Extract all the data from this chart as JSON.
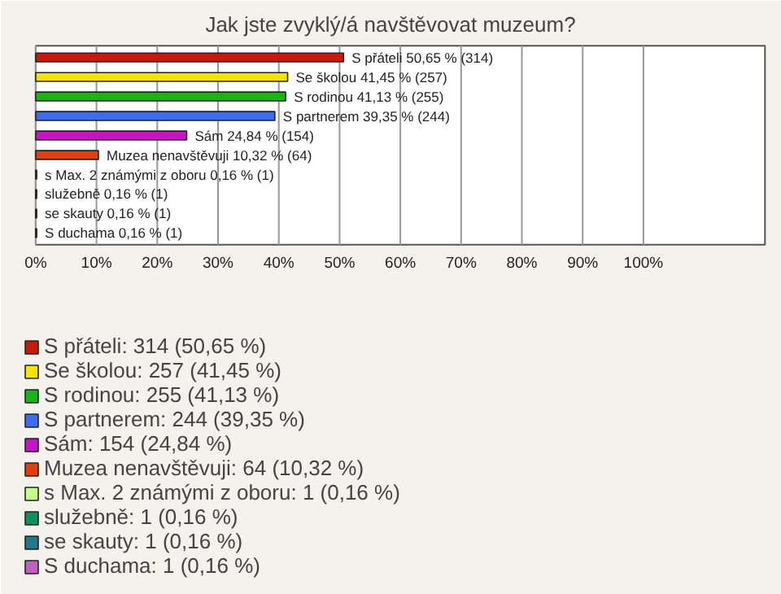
{
  "chart_data": {
    "type": "bar",
    "orientation": "horizontal",
    "title": "Jak jste zvyklý/á navštěvovat muzeum?",
    "categories": [
      null,
      null,
      null,
      null,
      null,
      null,
      null,
      null,
      null,
      null
    ],
    "series": [
      {
        "name": "S přáteli: 314 (50,65 %)",
        "color": "#c81a0a",
        "values": [
          50.65,
          null,
          null,
          null,
          null,
          null,
          null,
          null,
          null,
          null
        ],
        "value_labels": [
          "S přáteli 50,65 % (314)",
          null,
          null,
          null,
          null,
          null,
          null,
          null,
          null,
          null
        ]
      },
      {
        "name": "Se školou: 257 (41,45 %)",
        "color": "#f5e400",
        "values": [
          null,
          41.45,
          null,
          null,
          null,
          null,
          null,
          null,
          null,
          null
        ],
        "value_labels": [
          null,
          "Se školou 41,45 % (257)",
          null,
          null,
          null,
          null,
          null,
          null,
          null,
          null
        ]
      },
      {
        "name": "S rodinou: 255 (41,13 %)",
        "color": "#14b814",
        "values": [
          null,
          null,
          41.13,
          null,
          null,
          null,
          null,
          null,
          null,
          null
        ],
        "value_labels": [
          null,
          null,
          "S rodinou 41,13 % (255)",
          null,
          null,
          null,
          null,
          null,
          null,
          null
        ]
      },
      {
        "name": "S partnerem: 244 (39,35 %)",
        "color": "#3c6cf0",
        "values": [
          null,
          null,
          null,
          39.35,
          null,
          null,
          null,
          null,
          null,
          null
        ],
        "value_labels": [
          null,
          null,
          null,
          "S partnerem 39,35 % (244)",
          null,
          null,
          null,
          null,
          null,
          null
        ]
      },
      {
        "name": "Sám: 154 (24,84 %)",
        "color": "#c414c8",
        "values": [
          null,
          null,
          null,
          null,
          24.84,
          null,
          null,
          null,
          null,
          null
        ],
        "value_labels": [
          null,
          null,
          null,
          null,
          "Sám 24,84 % (154)",
          null,
          null,
          null,
          null,
          null
        ]
      },
      {
        "name": "Muzea nenavštěvuji: 64 (10,32 %)",
        "color": "#e04010",
        "values": [
          null,
          null,
          null,
          null,
          null,
          10.32,
          null,
          null,
          null,
          null
        ],
        "value_labels": [
          null,
          null,
          null,
          null,
          null,
          "Muzea nenavštěvuji 10,32 % (64)",
          null,
          null,
          null,
          null
        ]
      },
      {
        "name": "s Max. 2 známými z oboru: 1 (0,16 %)",
        "color": "#c4ff8c",
        "values": [
          null,
          null,
          null,
          null,
          null,
          null,
          0.16,
          null,
          null,
          null
        ],
        "value_labels": [
          null,
          null,
          null,
          null,
          null,
          null,
          "s Max. 2 známými z oboru 0,16 % (1)",
          null,
          null,
          null
        ]
      },
      {
        "name": "služebně: 1 (0,16 %)",
        "color": "#109060",
        "values": [
          null,
          null,
          null,
          null,
          null,
          null,
          null,
          0.16,
          null,
          null
        ],
        "value_labels": [
          null,
          null,
          null,
          null,
          null,
          null,
          null,
          "služebně 0,16 % (1)",
          null,
          null
        ]
      },
      {
        "name": "se skauty: 1 (0,16 %)",
        "color": "#207888",
        "values": [
          null,
          null,
          null,
          null,
          null,
          null,
          null,
          null,
          0.16,
          null
        ],
        "value_labels": [
          null,
          null,
          null,
          null,
          null,
          null,
          null,
          null,
          "se skauty 0,16 % (1)",
          null
        ]
      },
      {
        "name": "S duchama: 1 (0,16 %)",
        "color": "#c060c0",
        "values": [
          null,
          null,
          null,
          null,
          null,
          null,
          null,
          null,
          null,
          0.16
        ],
        "value_labels": [
          null,
          null,
          null,
          null,
          null,
          null,
          null,
          null,
          null,
          "S duchama 0,16 % (1)"
        ]
      }
    ],
    "xlim": [
      0,
      120
    ],
    "xticks": [
      {
        "value": 0,
        "label": "0%"
      },
      {
        "value": 10,
        "label": "10%"
      },
      {
        "value": 20,
        "label": "20%"
      },
      {
        "value": 30,
        "label": "30%"
      },
      {
        "value": 40,
        "label": "40%"
      },
      {
        "value": 50,
        "label": "50%"
      },
      {
        "value": 60,
        "label": "60%"
      },
      {
        "value": 70,
        "label": "70%"
      },
      {
        "value": 80,
        "label": "80%"
      },
      {
        "value": 90,
        "label": "90%"
      },
      {
        "value": 100,
        "label": "100%"
      }
    ],
    "grid": "x",
    "legend": "bottom"
  }
}
